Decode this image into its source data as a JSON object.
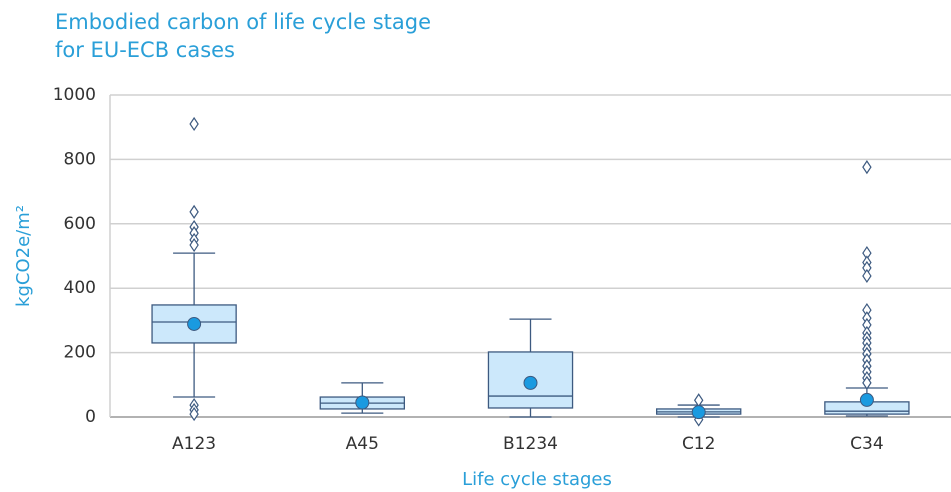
{
  "chart_data": {
    "type": "box",
    "title": [
      "Embodied carbon of life cycle stage",
      "for EU-ECB cases"
    ],
    "y_label": "kgCO2e/m²",
    "x_label": "Life cycle stages",
    "categories": [
      "A123",
      "A45",
      "B1234",
      "C12",
      "C34"
    ],
    "whisker_low": [
      62,
      12,
      0,
      0,
      3
    ],
    "q1": [
      230,
      25,
      28,
      9,
      9
    ],
    "median": [
      295,
      43,
      65,
      16,
      18
    ],
    "q3": [
      348,
      62,
      202,
      25,
      47
    ],
    "whisker_high": [
      509,
      106,
      304,
      37,
      90
    ],
    "mean": [
      289,
      45,
      106,
      15,
      53
    ],
    "outliers": [
      [
        910,
        637,
        590,
        571,
        550,
        534,
        37,
        22,
        9
      ],
      [],
      [],
      [
        52,
        -8
      ],
      [
        776,
        509,
        480,
        463,
        438,
        332,
        307,
        286,
        261,
        245,
        230,
        211,
        196,
        177,
        158,
        140,
        121,
        106
      ]
    ],
    "ylim": [
      0,
      1000
    ],
    "yticks": [
      0,
      200,
      400,
      600,
      800,
      1000
    ],
    "grid": true,
    "box_color": "#cce8fb",
    "line_color": "#3d5a80",
    "mean_color": "#1a9ae0"
  }
}
